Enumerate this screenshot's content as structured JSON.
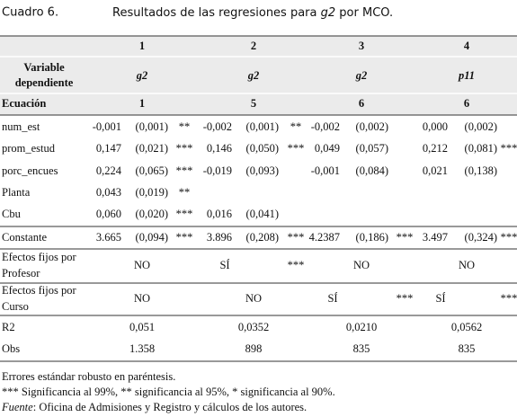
{
  "title": {
    "number": "Cuadro 6.",
    "text_before": "Resultados de las regresiones para ",
    "text_var": "g2",
    "text_after": " por MCO."
  },
  "table": {
    "column_numbers": [
      "1",
      "2",
      "3",
      "4"
    ],
    "dependent_label": [
      "Variable",
      "dependiente"
    ],
    "dependent": [
      "g2",
      "g2",
      "g2",
      "p11"
    ],
    "equation_label": "Ecuación",
    "equations": [
      "1",
      "5",
      "6",
      "6"
    ],
    "rows": [
      {
        "label": "num_est",
        "cols": [
          {
            "coef": "-0,001",
            "se": "(0,001)",
            "sig": "**"
          },
          {
            "coef": "-0,002",
            "se": "(0,001)",
            "sig": "**"
          },
          {
            "coef": "-0,002",
            "se": "(0,002)"
          },
          {
            "coef": "0,000",
            "se": "(0,002)"
          }
        ]
      },
      {
        "label": "prom_estud",
        "cols": [
          {
            "coef": "0,147",
            "se": "(0,021)",
            "sig": "***"
          },
          {
            "coef": "0,146",
            "se": "(0,050)",
            "sig": "***"
          },
          {
            "coef": "0,049",
            "se": "(0,057)"
          },
          {
            "coef": "0,212",
            "se": "(0,081)",
            "sig": "***"
          }
        ]
      },
      {
        "label": "porc_encues",
        "cols": [
          {
            "coef": "0,224",
            "se": "(0,065)",
            "sig": "***"
          },
          {
            "coef": "-0,019",
            "se": "(0,093)"
          },
          {
            "coef": "-0,001",
            "se": "(0,084)"
          },
          {
            "coef": "0,021",
            "se": "(0,138)"
          }
        ]
      },
      {
        "label": "Planta",
        "cols": [
          {
            "coef": "0,043",
            "se": "(0,019)",
            "sig": "**"
          },
          null,
          null,
          null
        ]
      },
      {
        "label": "Cbu",
        "cols": [
          {
            "coef": "0,060",
            "se": "(0,020)",
            "sig": "***"
          },
          {
            "coef": "0,016",
            "se": "(0,041)"
          },
          null,
          null
        ]
      },
      {
        "label": "Constante",
        "cols": [
          {
            "coef": "3.665",
            "se": "(0,094)",
            "sig": "***"
          },
          {
            "coef": "3.896",
            "se": "(0,208)",
            "sig": "***"
          },
          {
            "coef": "4.2387",
            "se": "(0,186)",
            "sig": "***"
          },
          {
            "coef": "3.497",
            "se": "(0,324)",
            "sig": "***"
          }
        ]
      }
    ],
    "fixed_effects": [
      {
        "label": [
          "Efectos fijos por",
          "Profesor"
        ],
        "cells": [
          {
            "value": "NO"
          },
          {
            "value": "SÍ",
            "sig": "***"
          },
          {
            "value": "NO"
          },
          {
            "value": "NO"
          }
        ]
      },
      {
        "label": [
          "Efectos fijos por",
          "Curso"
        ],
        "cells": [
          {
            "value": "NO"
          },
          {
            "value": "NO"
          },
          {
            "value": "SÍ",
            "sig": "***"
          },
          {
            "value": "SÍ",
            "sig": "***"
          }
        ]
      }
    ],
    "stats": [
      {
        "label": "R2",
        "values": [
          "0,051",
          "0,0352",
          "0,0210",
          "0,0562"
        ]
      },
      {
        "label": "Obs",
        "values": [
          "1.358",
          "898",
          "835",
          "835"
        ]
      }
    ]
  },
  "notes": {
    "lines": [
      "Errores estándar robusto en paréntesis.",
      "*** Significancia al 99%, ** significancia al 95%, * significancia al 90%."
    ],
    "source_label": "Fuente",
    "source_text": ": Oficina de Admisiones y Registro y cálculos de los autores."
  }
}
